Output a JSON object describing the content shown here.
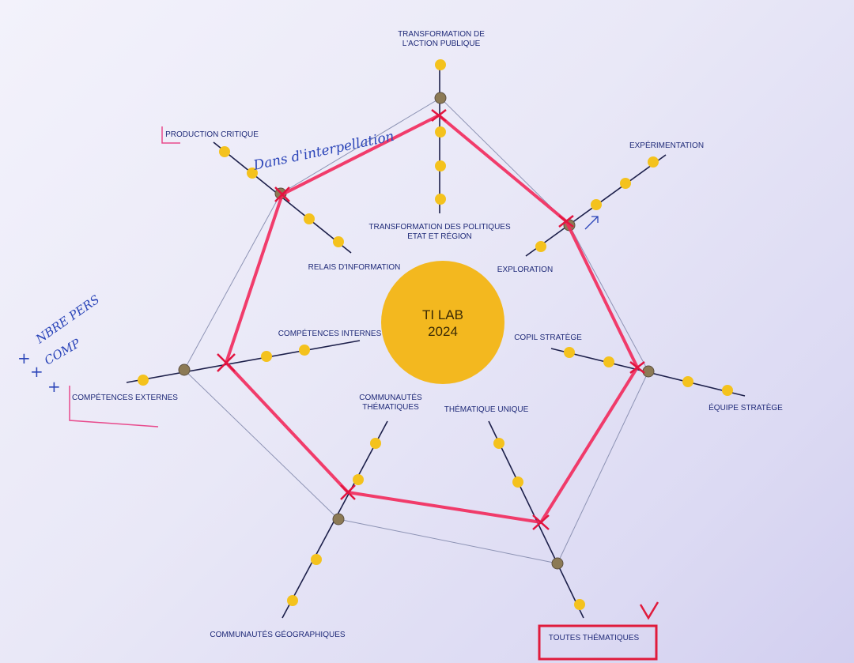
{
  "hub": {
    "line1": "TI LAB",
    "line2": "2024"
  },
  "axes": [
    {
      "outer_label": "TRANSFORMATION DE\nL'ACTION PUBLIQUE",
      "inner_label": "TRANSFORMATION DES POLITIQUES\nETAT ET RÉGION"
    },
    {
      "outer_label": "EXPÉRIMENTATION",
      "inner_label": "EXPLORATION"
    },
    {
      "outer_label": "ÉQUIPE STRATÈGE",
      "inner_label": "COPIL STRATÈGE"
    },
    {
      "outer_label": "TOUTES THÉMATIQUES",
      "inner_label": "THÉMATIQUE UNIQUE"
    },
    {
      "outer_label": "COMMUNAUTÉS GÉOGRAPHIQUES",
      "inner_label": "COMMUNAUTÉS\nTHÉMATIQUES"
    },
    {
      "outer_label": "COMPÉTENCES EXTERNES",
      "inner_label": "COMPÉTENCES INTERNES"
    },
    {
      "outer_label": "PRODUCTION CRITIQUE",
      "inner_label": "RELAIS D'INFORMATION"
    }
  ],
  "handwritten": {
    "note_top": "Dans d'interpellation",
    "note_left_1": "NBRE PERS",
    "note_left_2": "COMP"
  },
  "colors": {
    "axis": "#1c1f4a",
    "dot": "#f4c21d",
    "selected_dot": "#8c7a55",
    "profile": "#f2295b",
    "guide": "#8d93b4",
    "hub": "#f3b81f",
    "label": "#1f2a78",
    "pen": "#2a44b8"
  }
}
